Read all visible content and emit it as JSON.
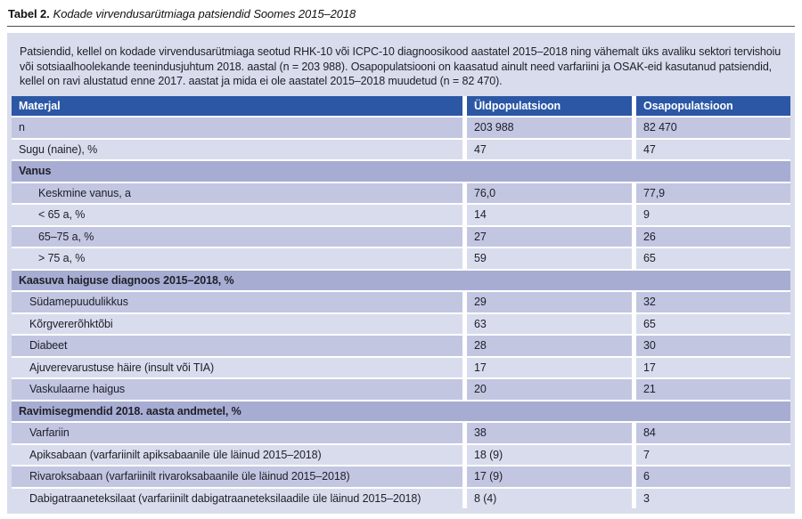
{
  "title": {
    "label": "Tabel 2.",
    "text": "Kodade virvendusarütmiaga patsiendid Soomes 2015–2018"
  },
  "intro": "Patsiendid, kellel on kodade virvendusarütmiaga seotud RHK-10 või ICPC-10 diagnoosikood aastatel 2015–2018 ning vähemalt üks avaliku sektori tervishoiu või sotsiaalhoolekande teenindusjuhtum 2018. aastal (n = 203 988). Osapopulatsiooni on kaasatud ainult need varfariini ja OSAK-eid kasutanud patsiendid, kellel on ravi alustatud enne 2017. aastat ja mida ei ole aastatel 2015–2018 muudetud (n = 82 470).",
  "table": {
    "columns": [
      "Materjal",
      "Üldpopulatsioon",
      "Osapopulatsioon"
    ],
    "rows": [
      {
        "type": "data",
        "indent": 0,
        "label": "n",
        "uld": "203 988",
        "osa": "82 470"
      },
      {
        "type": "data",
        "indent": 0,
        "label": "Sugu (naine), %",
        "uld": "47",
        "osa": "47"
      },
      {
        "type": "section",
        "label": "Vanus"
      },
      {
        "type": "data",
        "indent": 2,
        "label": "Keskmine vanus, a",
        "uld": "76,0",
        "osa": "77,9"
      },
      {
        "type": "data",
        "indent": 2,
        "label": "< 65 a, %",
        "uld": "14",
        "osa": "9"
      },
      {
        "type": "data",
        "indent": 2,
        "label": "65–75 a, %",
        "uld": "27",
        "osa": "26"
      },
      {
        "type": "data",
        "indent": 2,
        "label": "> 75 a, %",
        "uld": "59",
        "osa": "65"
      },
      {
        "type": "section",
        "label": "Kaasuva haiguse diagnoos 2015–2018, %"
      },
      {
        "type": "data",
        "indent": 1,
        "label": "Südamepuudulikkus",
        "uld": "29",
        "osa": "32"
      },
      {
        "type": "data",
        "indent": 1,
        "label": "Kõrgvererõhktõbi",
        "uld": "63",
        "osa": "65"
      },
      {
        "type": "data",
        "indent": 1,
        "label": "Diabeet",
        "uld": "28",
        "osa": "30"
      },
      {
        "type": "data",
        "indent": 1,
        "label": "Ajuverevarustuse häire (insult või TIA)",
        "uld": "17",
        "osa": "17"
      },
      {
        "type": "data",
        "indent": 1,
        "label": "Vaskulaarne haigus",
        "uld": "20",
        "osa": "21"
      },
      {
        "type": "section",
        "label": "Ravimisegmendid 2018. aasta andmetel, %"
      },
      {
        "type": "data",
        "indent": 1,
        "label": "Varfariin",
        "uld": "38",
        "osa": "84"
      },
      {
        "type": "data",
        "indent": 1,
        "label": "Apiksabaan (varfariinilt apiksabaanile üle läinud 2015–2018)",
        "uld": "18 (9)",
        "osa": "7"
      },
      {
        "type": "data",
        "indent": 1,
        "label": "Rivaroksabaan (varfariinilt rivaroksabaanile üle läinud 2015–2018)",
        "uld": "17 (9)",
        "osa": "6"
      },
      {
        "type": "data",
        "indent": 1,
        "label": "Dabigatraaneteksilaat (varfariinilt dabigatraaneteksilaadile üle läinud 2015–2018)",
        "uld": "8 (4)",
        "osa": "3"
      }
    ]
  },
  "colors": {
    "header_bg": "#2b57a5",
    "header_text": "#ffffff",
    "section_row_bg": "#a7add2",
    "row_medium_bg": "#c3c6e1",
    "row_light_bg": "#d9dcec",
    "panel_bg": "#d9dcec",
    "text": "#20202c"
  }
}
